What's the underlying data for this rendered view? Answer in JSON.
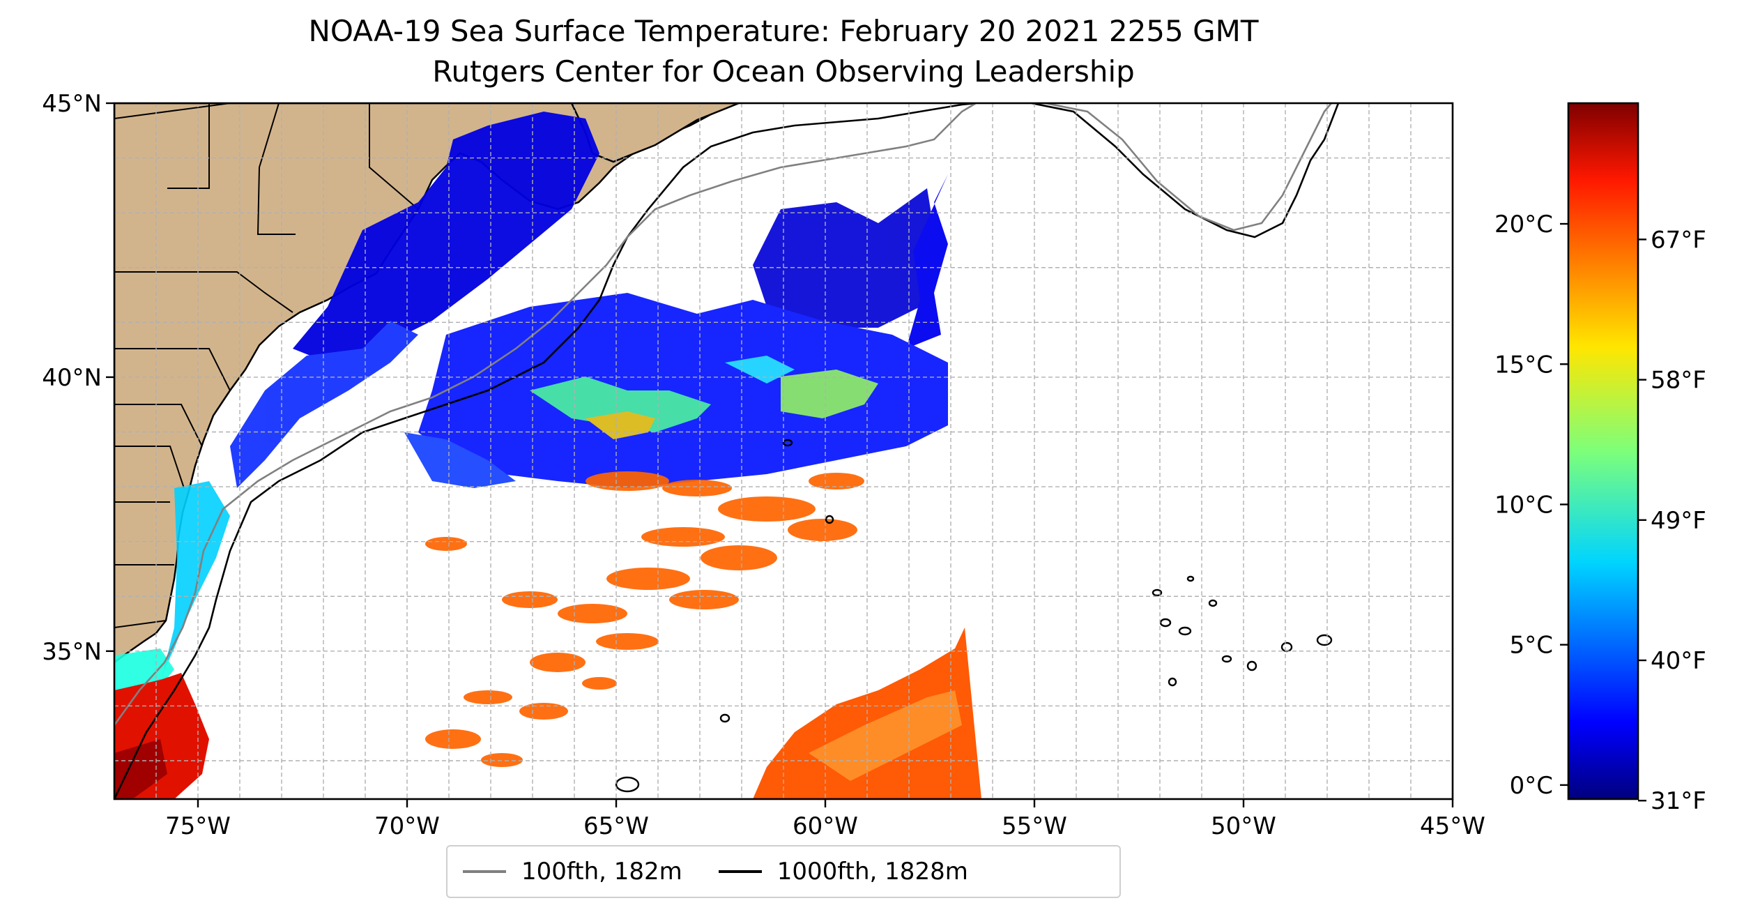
{
  "title": {
    "line1": "NOAA-19 Sea Surface Temperature: February 20 2021 2255 GMT",
    "line2": "Rutgers Center for Ocean Observing Leadership"
  },
  "map": {
    "lon_range": [
      -77,
      -45
    ],
    "lat_range": [
      32.3,
      45
    ],
    "lon_ticks": [
      "75°W",
      "70°W",
      "65°W",
      "60°W",
      "55°W",
      "50°W",
      "45°W"
    ],
    "lat_ticks": [
      "35°N",
      "40°N",
      "45°N"
    ],
    "land_color": "#d2b48c",
    "grid": true
  },
  "colorbar": {
    "celsius_ticks": [
      "0°C",
      "5°C",
      "10°C",
      "15°C",
      "20°C"
    ],
    "fahrenheit_ticks": [
      "31°F",
      "40°F",
      "49°F",
      "58°F",
      "67°F"
    ],
    "colormap": "jet",
    "c_min": -0.5,
    "c_max": 24.3
  },
  "legend": {
    "items": [
      {
        "label": "100fth, 182m",
        "color": "#808080"
      },
      {
        "label": "1000fth, 1828m",
        "color": "#000000"
      }
    ]
  }
}
